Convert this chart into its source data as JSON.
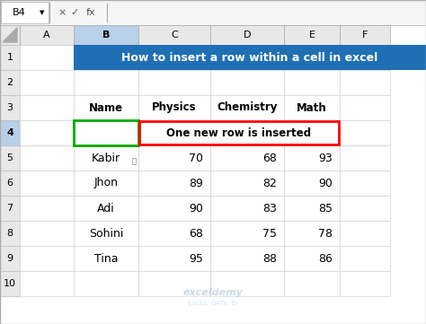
{
  "title_text": "How to insert a row within a cell in excel",
  "title_bg": "#1F6FB5",
  "title_text_color": "#FFFFFF",
  "col_headers": [
    "A",
    "B",
    "C",
    "D",
    "E",
    "F"
  ],
  "headers_row3": [
    "Name",
    "Physics",
    "Chemistry",
    "Math"
  ],
  "data": [
    [
      "Kabir",
      70,
      68,
      93
    ],
    [
      "Jhon",
      89,
      82,
      90
    ],
    [
      "Adi",
      90,
      83,
      85
    ],
    [
      "Sohini",
      68,
      75,
      78
    ],
    [
      "Tina",
      95,
      88,
      86
    ]
  ],
  "annotation_text": "One new row is inserted",
  "annotation_box_color": "#FF0000",
  "header_col_bg": "#E8E8E8",
  "header_col_selected_bg": "#B8D0E8",
  "formula_bar_bg": "#F5F5F5",
  "cell_name_text": "B4",
  "b4_border_color": "#00AA00",
  "watermark_text": "exceldemy",
  "watermark_sub": "EXCEL  DATA  BI",
  "fig_bg": "#FFFFFF"
}
